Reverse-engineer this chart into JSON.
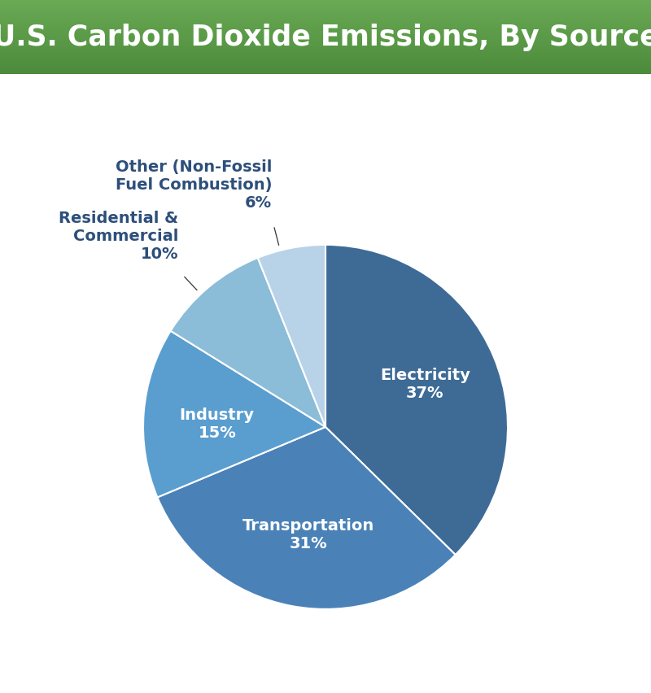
{
  "title": "U.S. Carbon Dioxide Emissions, By Source",
  "title_color": "#ffffff",
  "bg_color": "#ffffff",
  "header_green_top": "#6aaa55",
  "header_green_bottom": "#4a8a3a",
  "slices": [
    {
      "label": "Electricity",
      "pct": 37,
      "color": "#3d6b96",
      "text_color": "#ffffff",
      "inside": true
    },
    {
      "label": "Transportation",
      "pct": 31,
      "color": "#4a82b8",
      "text_color": "#ffffff",
      "inside": true
    },
    {
      "label": "Industry",
      "pct": 15,
      "color": "#5a9ed0",
      "text_color": "#ffffff",
      "inside": true
    },
    {
      "label": "Residential &\nCommercial",
      "pct": 10,
      "color": "#8bbcd8",
      "text_color": "#2d4f7a",
      "inside": false
    },
    {
      "label": "Other (Non-Fossil\nFuel Combustion)",
      "pct": 6,
      "color": "#b8d3e8",
      "text_color": "#2d4f7a",
      "inside": false
    }
  ],
  "startangle": 90,
  "figsize": [
    8.0,
    8.53
  ],
  "dpi": 100,
  "title_fontsize": 25,
  "inside_label_fontsize": 14,
  "outside_label_fontsize": 14
}
